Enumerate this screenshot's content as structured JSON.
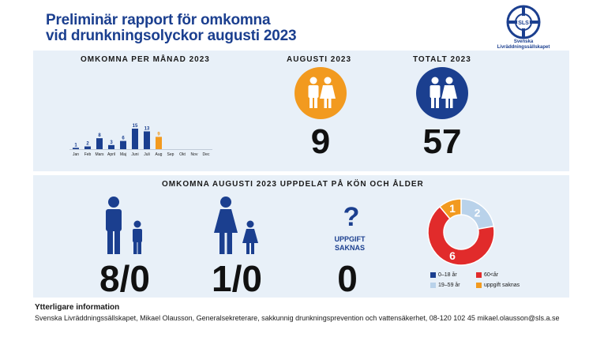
{
  "header": {
    "title_line1": "Preliminär rapport för omkomna",
    "title_line2": "vid drunkningsolyckor augusti 2023",
    "logo_text_line1": "Svenska",
    "logo_text_line2": "Livräddningssällskapet",
    "logo_letters": "SLS"
  },
  "monthly": {
    "heading": "OMKOMNA PER MÅNAD 2023"
  },
  "august": {
    "heading": "AUGUSTI 2023",
    "value": "9",
    "color": "#f29a1f"
  },
  "total": {
    "heading": "TOTALT 2023",
    "value": "57",
    "color": "#1b3f8f"
  },
  "breakdown": {
    "heading": "OMKOMNA AUGUSTI 2023 UPPDELAT PÅ KÖN OCH ÅLDER",
    "men_value": "8/0",
    "women_value": "1/0",
    "unknown_symbol": "?",
    "unknown_label_line1": "UPPGIFT",
    "unknown_label_line2": "SAKNAS",
    "unknown_value": "0"
  },
  "legend": [
    {
      "label": "0–18 år",
      "color": "#1b3f8f"
    },
    {
      "label": "60<år",
      "color": "#e12b2b"
    },
    {
      "label": "19–59 år",
      "color": "#b9d2ea"
    },
    {
      "label": "uppgift saknas",
      "color": "#f29a1f"
    }
  ],
  "footer": {
    "title": "Ytterligare information",
    "text": "Svenska Livräddningssällskapet, Mikael Olausson, Generalsekreterare, sakkunnig drunkningsprevention och vattensäkerhet, 08-120 102 45  mikael.olausson@sls.a.se"
  },
  "chart_data": [
    {
      "type": "bar",
      "categories": [
        "Jan",
        "Feb",
        "Mars",
        "April",
        "Maj",
        "Juni",
        "Juli",
        "Aug",
        "Sep",
        "Okt",
        "Nov",
        "Dec"
      ],
      "values": [
        1,
        2,
        8,
        3,
        6,
        15,
        13,
        9,
        null,
        null,
        null,
        null
      ],
      "highlight_category": "Aug",
      "colors": {
        "default": "#1b3f8f",
        "highlight": "#f29a1f"
      }
    },
    {
      "type": "pie",
      "categories": [
        "0–18 år",
        "19–59 år",
        "60<år",
        "uppgift saknas"
      ],
      "values": [
        0,
        2,
        6,
        1
      ],
      "colors": [
        "#1b3f8f",
        "#b9d2ea",
        "#e12b2b",
        "#f29a1f"
      ]
    }
  ]
}
